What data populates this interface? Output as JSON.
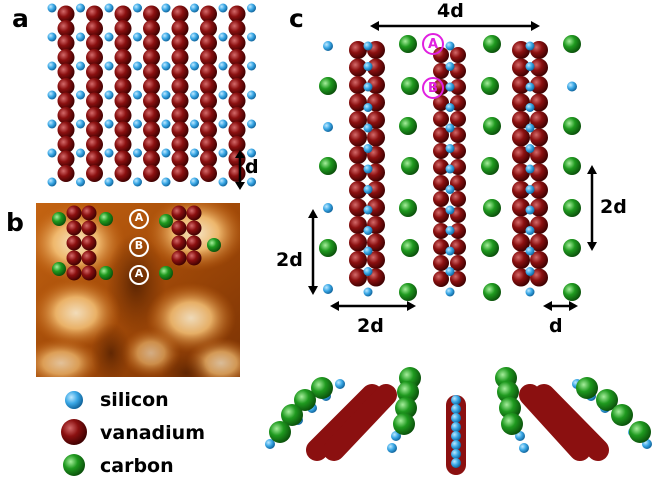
{
  "panels": {
    "a": "a",
    "b": "b",
    "c": "c"
  },
  "dimensions": {
    "a_d": "d",
    "c_top": "4d",
    "c_right": "2d",
    "c_left": "2d",
    "c_bottom_left": "2d",
    "c_bottom_right": "d"
  },
  "site_labels": {
    "A": "A",
    "B": "B"
  },
  "legend": [
    {
      "label": "silicon",
      "color": "#3aa8e6"
    },
    {
      "label": "vanadium",
      "color": "#8b1010"
    },
    {
      "label": "carbon",
      "color": "#1f9a1f"
    }
  ]
}
